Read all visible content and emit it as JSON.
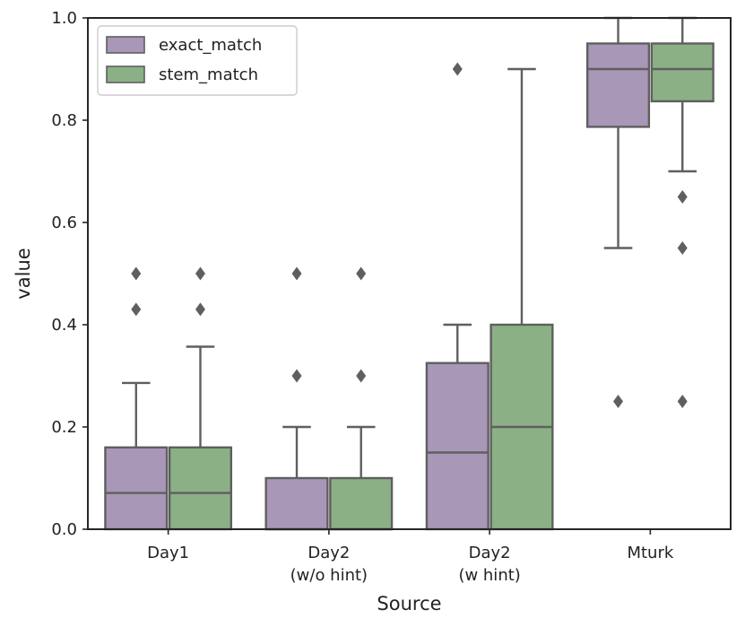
{
  "chart_data": {
    "type": "boxplot",
    "title": "",
    "xlabel": "Source",
    "ylabel": "value",
    "ylim": [
      0.0,
      1.0
    ],
    "yticks": [
      "0.0",
      "0.2",
      "0.4",
      "0.6",
      "0.8",
      "1.0"
    ],
    "grid": false,
    "legend_position": "top-left",
    "categories": [
      [
        "Day1"
      ],
      [
        "Day2",
        "(w/o hint)"
      ],
      [
        "Day2",
        "(w hint)"
      ],
      [
        "Mturk"
      ]
    ],
    "series": [
      {
        "name": "exact_match",
        "color": "#a897b6",
        "boxes": [
          {
            "q1": 0.0,
            "median": 0.071,
            "q3": 0.16,
            "whisker_low": 0.0,
            "whisker_high": 0.286,
            "outliers": [
              0.43,
              0.5
            ]
          },
          {
            "q1": 0.0,
            "median": 0.0,
            "q3": 0.1,
            "whisker_low": 0.0,
            "whisker_high": 0.2,
            "outliers": [
              0.3,
              0.5
            ]
          },
          {
            "q1": 0.0,
            "median": 0.15,
            "q3": 0.325,
            "whisker_low": 0.0,
            "whisker_high": 0.4,
            "outliers": [
              0.9
            ]
          },
          {
            "q1": 0.787,
            "median": 0.9,
            "q3": 0.95,
            "whisker_low": 0.55,
            "whisker_high": 1.0,
            "outliers": [
              0.25
            ]
          }
        ]
      },
      {
        "name": "stem_match",
        "color": "#8bb086",
        "boxes": [
          {
            "q1": 0.0,
            "median": 0.071,
            "q3": 0.16,
            "whisker_low": 0.0,
            "whisker_high": 0.357,
            "outliers": [
              0.43,
              0.5
            ]
          },
          {
            "q1": 0.0,
            "median": 0.0,
            "q3": 0.1,
            "whisker_low": 0.0,
            "whisker_high": 0.2,
            "outliers": [
              0.3,
              0.5
            ]
          },
          {
            "q1": 0.0,
            "median": 0.2,
            "q3": 0.4,
            "whisker_low": 0.0,
            "whisker_high": 0.9,
            "outliers": []
          },
          {
            "q1": 0.837,
            "median": 0.9,
            "q3": 0.95,
            "whisker_low": 0.7,
            "whisker_high": 1.0,
            "outliers": [
              0.25,
              0.55,
              0.65
            ]
          }
        ]
      }
    ],
    "line_color": "#5f5f5f"
  }
}
